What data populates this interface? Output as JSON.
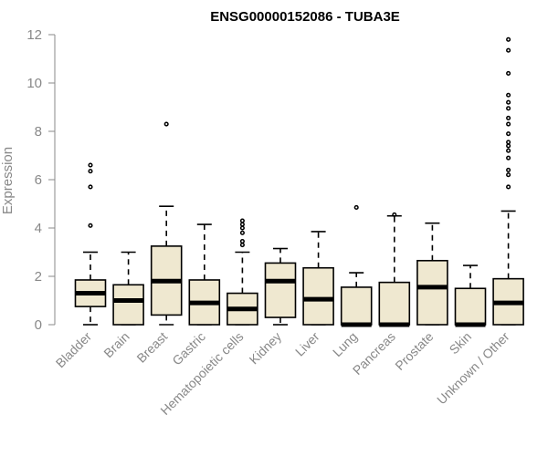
{
  "chart_data": {
    "type": "boxplot",
    "title": "ENSG00000152086 - TUBA3E",
    "xlabel": "",
    "ylabel": "Expression",
    "ylim": [
      0,
      12
    ],
    "yticks": [
      0,
      2,
      4,
      6,
      8,
      10,
      12
    ],
    "colors": {
      "box_fill": "#efe8d0",
      "box_stroke": "#000000",
      "axis": "#888888"
    },
    "categories": [
      "Bladder",
      "Brain",
      "Breast",
      "Gastric",
      "Hematopoietic cells",
      "Kidney",
      "Liver",
      "Lung",
      "Pancreas",
      "Prostate",
      "Skin",
      "Unknown / Other"
    ],
    "boxes": [
      {
        "label": "Bladder",
        "min": 0,
        "q1": 0.75,
        "median": 1.3,
        "q3": 1.85,
        "max": 3.0,
        "outliers": [
          4.1,
          5.7,
          6.35,
          6.6
        ]
      },
      {
        "label": "Brain",
        "min": 0,
        "q1": 0,
        "median": 1.0,
        "q3": 1.65,
        "max": 3.0,
        "outliers": []
      },
      {
        "label": "Breast",
        "min": 0,
        "q1": 0.4,
        "median": 1.8,
        "q3": 3.25,
        "max": 4.9,
        "outliers": [
          8.3
        ]
      },
      {
        "label": "Gastric",
        "min": 0,
        "q1": 0,
        "median": 0.9,
        "q3": 1.85,
        "max": 4.15,
        "outliers": []
      },
      {
        "label": "Hematopoietic cells",
        "min": 0,
        "q1": 0,
        "median": 0.65,
        "q3": 1.3,
        "max": 3.0,
        "outliers": [
          3.3,
          3.45,
          3.8,
          4.0,
          4.15,
          4.3
        ]
      },
      {
        "label": "Kidney",
        "min": 0,
        "q1": 0.3,
        "median": 1.8,
        "q3": 2.55,
        "max": 3.15,
        "outliers": []
      },
      {
        "label": "Liver",
        "min": 0,
        "q1": 0,
        "median": 1.05,
        "q3": 2.35,
        "max": 3.85,
        "outliers": []
      },
      {
        "label": "Lung",
        "min": 0,
        "q1": 0,
        "median": 0,
        "q3": 1.55,
        "max": 2.15,
        "outliers": [
          4.85
        ]
      },
      {
        "label": "Pancreas",
        "min": 0,
        "q1": 0,
        "median": 0,
        "q3": 1.75,
        "max": 4.5,
        "outliers": [
          4.55
        ]
      },
      {
        "label": "Prostate",
        "min": 0,
        "q1": 0,
        "median": 1.55,
        "q3": 2.65,
        "max": 4.2,
        "outliers": []
      },
      {
        "label": "Skin",
        "min": 0,
        "q1": 0,
        "median": 0,
        "q3": 1.5,
        "max": 2.45,
        "outliers": []
      },
      {
        "label": "Unknown / Other",
        "min": 0,
        "q1": 0,
        "median": 0.9,
        "q3": 1.9,
        "max": 4.7,
        "outliers": [
          5.7,
          6.2,
          6.4,
          6.9,
          7.2,
          7.4,
          7.55,
          7.9,
          8.3,
          8.55,
          8.95,
          9.2,
          9.5,
          10.4,
          11.35,
          11.8
        ]
      }
    ]
  }
}
